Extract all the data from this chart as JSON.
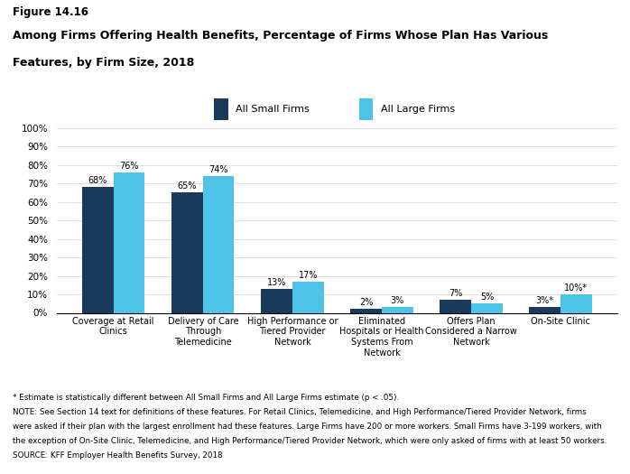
{
  "figure_label": "Figure 14.16",
  "title_line1": "Among Firms Offering Health Benefits, Percentage of Firms Whose Plan Has Various",
  "title_line2": "Features, by Firm Size, 2018",
  "categories": [
    "Coverage at Retail\nClinics",
    "Delivery of Care\nThrough\nTelemedicine",
    "High Performance or\nTiered Provider\nNetwork",
    "Eliminated\nHospitals or Health\nSystems From\nNetwork",
    "Offers Plan\nConsidered a Narrow\nNetwork",
    "On-Site Clinic"
  ],
  "small_firms": [
    68,
    65,
    13,
    2,
    7,
    3
  ],
  "large_firms": [
    76,
    74,
    17,
    3,
    5,
    10
  ],
  "small_labels": [
    "68%",
    "65%",
    "13%",
    "2%",
    "7%",
    "3%*"
  ],
  "large_labels": [
    "76%",
    "74%",
    "17%",
    "3%",
    "5%",
    "10%*"
  ],
  "small_color": "#1a3a5c",
  "large_color": "#4dc3e8",
  "legend_small": "All Small Firms",
  "legend_large": "All Large Firms",
  "ylim": [
    0,
    100
  ],
  "yticks": [
    0,
    10,
    20,
    30,
    40,
    50,
    60,
    70,
    80,
    90,
    100
  ],
  "ytick_labels": [
    "0%",
    "10%",
    "20%",
    "30%",
    "40%",
    "50%",
    "60%",
    "70%",
    "80%",
    "90%",
    "100%"
  ],
  "footnotes": [
    "* Estimate is statistically different between All Small Firms and All Large Firms estimate (p < .05).",
    "NOTE: See Section 14 text for definitions of these features. For Retail Clinics, Telemedicine, and High Performance/Tiered Provider Network, firms",
    "were asked if their plan with the largest enrollment had these features. Large Firms have 200 or more workers. Small Firms have 3-199 workers, with",
    "the exception of On-Site Clinic, Telemedicine, and High Performance/Tiered Provider Network, which were only asked of firms with at least 50 workers.",
    "SOURCE: KFF Employer Health Benefits Survey, 2018"
  ]
}
